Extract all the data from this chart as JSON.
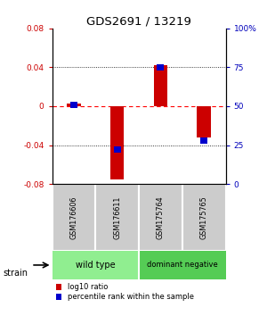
{
  "title": "GDS2691 / 13219",
  "samples": [
    "GSM176606",
    "GSM176611",
    "GSM175764",
    "GSM175765"
  ],
  "log10_ratio": [
    0.003,
    -0.075,
    0.042,
    -0.032
  ],
  "percentile_rank_pct": [
    51,
    22,
    75,
    28
  ],
  "groups": [
    {
      "label": "wild type",
      "samples": [
        0,
        1
      ],
      "color": "#90EE90"
    },
    {
      "label": "dominant negative",
      "samples": [
        2,
        3
      ],
      "color": "#55CC55"
    }
  ],
  "ylim": [
    -0.08,
    0.08
  ],
  "yticks_left": [
    -0.08,
    -0.04,
    0,
    0.04,
    0.08
  ],
  "yticks_right_vals": [
    0,
    25,
    50,
    75,
    100
  ],
  "yticks_right_labels": [
    "0",
    "25",
    "50",
    "75",
    "100%"
  ],
  "bar_color_red": "#CC0000",
  "bar_color_blue": "#0000CC",
  "red_bar_width": 0.32,
  "blue_bar_width": 0.16,
  "blue_bar_height": 0.006,
  "legend_red": "log10 ratio",
  "legend_blue": "percentile rank within the sample",
  "strain_label": "strain",
  "background_color": "#ffffff",
  "left_label_color": "#CC0000",
  "right_label_color": "#0000BB",
  "sample_box_color": "#cccccc",
  "sample_box_border": "#888888"
}
